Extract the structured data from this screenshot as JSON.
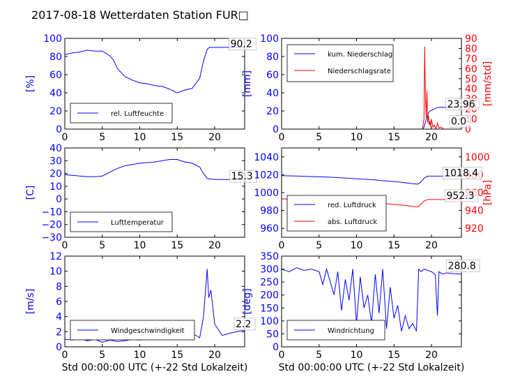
{
  "title": "2017-08-18 Wetterdaten Station FUR□",
  "colors": {
    "primary": "#0000ff",
    "secondary": "#ff0000",
    "axis": "#000000",
    "legend_border": "#666666"
  },
  "chart_data": [
    {
      "id": "humidity",
      "type": "line",
      "title": "",
      "xlabel": "",
      "ylabel": "[%]",
      "xlim": [
        0,
        24
      ],
      "ylim": [
        0,
        100
      ],
      "xticks": [
        "0",
        "5",
        "10",
        "15",
        "20"
      ],
      "yticks": [
        "0",
        "20",
        "40",
        "60",
        "80",
        "100"
      ],
      "legend_placement": "lower-left",
      "series": [
        {
          "name": "rel. Luftfeuchte",
          "color": "#0000ff",
          "x": [
            0,
            1,
            2,
            3,
            4,
            5,
            6,
            6.5,
            7,
            8,
            9,
            10,
            11,
            12,
            13,
            14,
            15,
            16,
            17,
            18,
            18.5,
            19,
            19.3,
            24
          ],
          "y": [
            82,
            84,
            85,
            87,
            86,
            86,
            81,
            76,
            67,
            58,
            54,
            51,
            50,
            48,
            47,
            44,
            40,
            43,
            45,
            56,
            75,
            88,
            90,
            90.2
          ]
        }
      ],
      "annotations": [
        {
          "text": "90.2",
          "x": 22.1,
          "y": 90.2
        }
      ]
    },
    {
      "id": "precipitation",
      "type": "line",
      "title": "",
      "xlabel": "",
      "ylabel": "[mm]",
      "ylabel_right": "[mm/std]",
      "xlim": [
        0,
        24
      ],
      "ylim": [
        0,
        100
      ],
      "ylim_right": [
        0,
        90
      ],
      "xticks": [
        "0",
        "5",
        "10",
        "15",
        "20"
      ],
      "yticks": [
        "0",
        "20",
        "40",
        "60",
        "80",
        "100"
      ],
      "yticks_right": [
        "0",
        "10",
        "20",
        "30",
        "40",
        "50",
        "60",
        "70",
        "80",
        "90"
      ],
      "legend_placement": "upper-left",
      "series": [
        {
          "name": "kum. Niederschlag",
          "color": "#0000ff",
          "axis": "left",
          "x": [
            0,
            18.8,
            19.0,
            19.2,
            19.4,
            19.6,
            19.8,
            20.2,
            20.6,
            21.0,
            24
          ],
          "y": [
            0,
            0,
            2,
            8,
            14,
            18,
            20,
            21.5,
            23.2,
            23.96,
            23.96
          ]
        },
        {
          "name": "Niederschlagsrate",
          "color": "#ff0000",
          "axis": "right",
          "x": [
            0,
            18.8,
            19.0,
            19.1,
            19.2,
            19.3,
            19.4,
            19.5,
            19.6,
            19.7,
            19.8,
            19.9,
            20.0,
            20.2,
            20.4,
            20.6,
            20.8,
            21.0,
            21.3,
            21.6,
            22,
            24
          ],
          "y": [
            0,
            0,
            10,
            82,
            30,
            12,
            38,
            6,
            14,
            4,
            8,
            2,
            10,
            2,
            4,
            0,
            6,
            1,
            2,
            0,
            0,
            0
          ]
        }
      ],
      "annotations": [
        {
          "text": "23.96",
          "x": 22.1,
          "y": 23.96
        },
        {
          "text": "0.0",
          "x": 22.6,
          "y": 5
        }
      ]
    },
    {
      "id": "temperature",
      "type": "line",
      "title": "",
      "xlabel": "",
      "ylabel": "[C]",
      "xlim": [
        0,
        24
      ],
      "ylim": [
        -30,
        40
      ],
      "xticks": [
        "0",
        "5",
        "10",
        "15",
        "20"
      ],
      "yticks": [
        "−30",
        "−20",
        "−10",
        "0",
        "10",
        "20",
        "30",
        "40"
      ],
      "legend_placement": "lower-left",
      "series": [
        {
          "name": "Lufttemperatur",
          "color": "#0000ff",
          "x": [
            0,
            1,
            2,
            3,
            4,
            5,
            6,
            7,
            8,
            9,
            10,
            11,
            12,
            13,
            14,
            15,
            16,
            17,
            18,
            18.5,
            19,
            20,
            24
          ],
          "y": [
            19,
            18.5,
            18,
            17.5,
            17.5,
            18,
            21,
            24,
            26,
            27,
            28,
            28.5,
            29,
            30,
            31,
            31,
            29,
            28,
            25,
            20,
            16,
            15.3,
            15.3
          ]
        }
      ],
      "annotations": [
        {
          "text": "15.3",
          "x": 22.2,
          "y": 15.3
        }
      ]
    },
    {
      "id": "pressure",
      "type": "line",
      "title": "",
      "xlabel": "",
      "ylabel": "",
      "ylabel_right": "[hPa]",
      "xlim": [
        0,
        24
      ],
      "ylim": [
        950,
        1050
      ],
      "ylim_right": [
        910,
        1010
      ],
      "xticks": [
        "0",
        "5",
        "10",
        "15",
        "20"
      ],
      "yticks": [
        "960",
        "980",
        "1000",
        "1020",
        "1040"
      ],
      "yticks_right": [
        "920",
        "940",
        "960",
        "980",
        "1000"
      ],
      "legend_placement": "lower-left",
      "series": [
        {
          "name": "red. Luftdruck",
          "color": "#0000ff",
          "axis": "left",
          "x": [
            0,
            2,
            4,
            6,
            8,
            10,
            12,
            14,
            16,
            17.5,
            18.2,
            18.6,
            19.0,
            19.5,
            24
          ],
          "y": [
            1019,
            1018.5,
            1018,
            1017.5,
            1016.5,
            1015.5,
            1014.5,
            1013,
            1011.5,
            1010,
            1009.5,
            1012,
            1016,
            1018.4,
            1018.4
          ]
        },
        {
          "name": "abs. Luftdruck",
          "color": "#ff0000",
          "axis": "right",
          "x": [
            0,
            2,
            4,
            6,
            8,
            10,
            12,
            14,
            16,
            17.5,
            18.2,
            18.6,
            19.0,
            19.5,
            24
          ],
          "y": [
            953,
            952.8,
            952.5,
            952,
            951,
            950,
            949,
            947.5,
            946,
            944.5,
            944,
            947,
            950.5,
            952.3,
            952.3
          ]
        }
      ],
      "annotations": [
        {
          "text": "1018.4",
          "x": 21.7,
          "y": 1018.4
        },
        {
          "text": "952.3",
          "x": 22.0,
          "y": 993
        }
      ]
    },
    {
      "id": "windspeed",
      "type": "line",
      "title": "",
      "xlabel": "Std 00:00:00 UTC (+-22 Std Lokalzeit)",
      "ylabel": "[m/s]",
      "xlim": [
        0,
        24
      ],
      "ylim": [
        0,
        12
      ],
      "xticks": [
        "0",
        "5",
        "10",
        "15",
        "20"
      ],
      "yticks": [
        "0",
        "2",
        "4",
        "6",
        "8",
        "10",
        "12"
      ],
      "legend_placement": "lower-left",
      "series": [
        {
          "name": "Windgeschwindigkeit",
          "color": "#0000ff",
          "x": [
            0,
            1,
            2,
            3,
            4,
            5,
            6,
            7,
            8,
            9,
            10,
            11,
            12,
            13,
            14,
            15,
            16,
            17,
            18,
            18.5,
            19,
            19.2,
            19.5,
            20,
            21,
            22,
            23,
            24
          ],
          "y": [
            1.0,
            0.9,
            1.1,
            0.8,
            1.0,
            0.6,
            0.9,
            0.7,
            0.8,
            1.0,
            0.9,
            1.1,
            1.3,
            1.2,
            1.5,
            1.6,
            1.4,
            1.8,
            1.2,
            4.0,
            10.3,
            6.5,
            7.5,
            3.0,
            1.5,
            1.8,
            2.0,
            2.2
          ]
        }
      ],
      "annotations": [
        {
          "text": "2.2",
          "x": 22.8,
          "y": 2.6
        }
      ]
    },
    {
      "id": "winddirection",
      "type": "line",
      "title": "",
      "xlabel": "Std 00:00:00 UTC (+-22 Std Lokalzeit)",
      "ylabel": "[deg]",
      "xlim": [
        0,
        24
      ],
      "ylim": [
        0,
        350
      ],
      "xticks": [
        "0",
        "5",
        "10",
        "15",
        "20"
      ],
      "yticks": [
        "0",
        "50",
        "100",
        "150",
        "200",
        "250",
        "300",
        "350"
      ],
      "legend_placement": "lower-left",
      "series": [
        {
          "name": "Windrichtung",
          "color": "#0000ff",
          "x": [
            0,
            1,
            2,
            3,
            4,
            5,
            5.5,
            6,
            6.5,
            7,
            7.5,
            8,
            8.5,
            9,
            9.5,
            10,
            10.5,
            11,
            11.5,
            12,
            12.5,
            13,
            13.5,
            14,
            14.5,
            15,
            15.5,
            16,
            16.5,
            17,
            17.5,
            18,
            18.3,
            18.6,
            19,
            20,
            20.5,
            20.8,
            21,
            21.5,
            22,
            23,
            24
          ],
          "y": [
            300,
            290,
            305,
            295,
            300,
            290,
            240,
            300,
            250,
            200,
            290,
            140,
            260,
            180,
            300,
            90,
            270,
            150,
            200,
            90,
            280,
            130,
            300,
            70,
            230,
            110,
            160,
            60,
            120,
            70,
            90,
            60,
            300,
            290,
            300,
            290,
            280,
            120,
            290,
            280,
            285,
            282,
            280.8
          ]
        }
      ],
      "annotations": [
        {
          "text": "280.8",
          "x": 22.2,
          "y": 300
        }
      ]
    }
  ]
}
